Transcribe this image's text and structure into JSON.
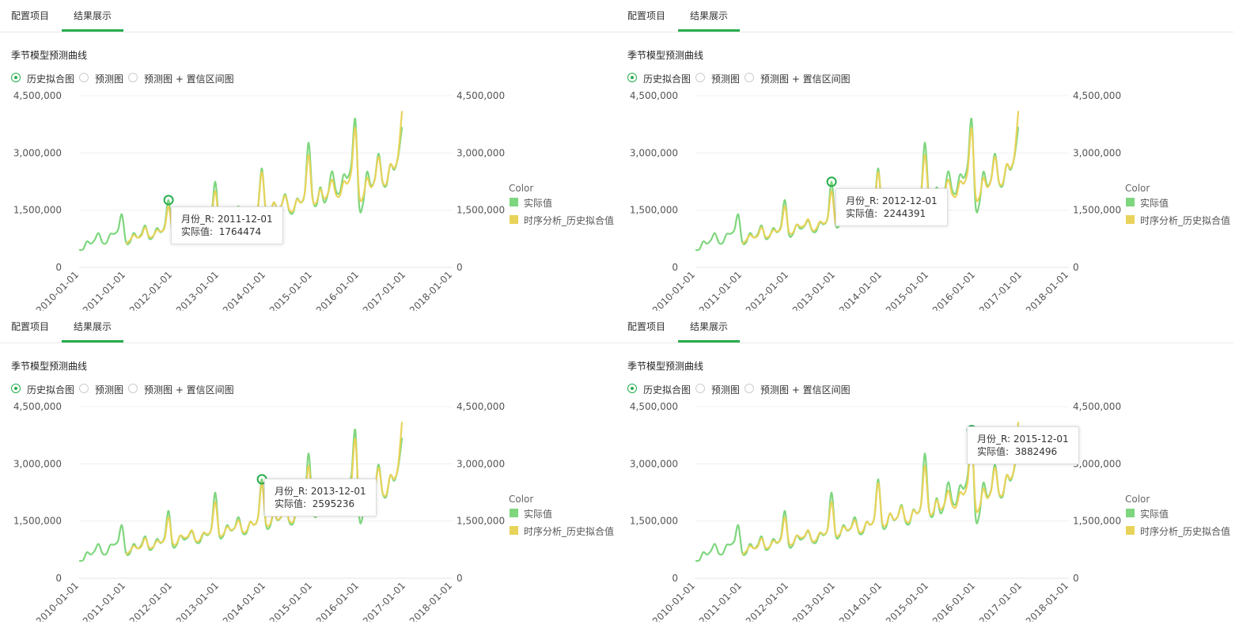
{
  "tabs": [
    "配置项目",
    "结果展示"
  ],
  "active_tab_index": 1,
  "panel_title": "季节模型预测曲线",
  "view_options": [
    "历史拟合图",
    "预测图",
    "预测图 + 置信区间图"
  ],
  "selected_view_index": 0,
  "colors": {
    "accent": "#27ad4e",
    "actual": "#7ed67e",
    "fitted": "#e8d35a"
  },
  "tooltip_labels": {
    "month": "月份_R:",
    "actual": "实际值:"
  },
  "tooltips": [
    {
      "date": "2011-12-01",
      "value": "1764474"
    },
    {
      "date": "2012-12-01",
      "value": "2244391"
    },
    {
      "date": "2013-12-01",
      "value": "2595236"
    },
    {
      "date": "2015-12-01",
      "value": "3882496"
    }
  ],
  "chart_data": {
    "type": "line",
    "title": "季节模型预测曲线",
    "x_tick_labels": [
      "2010-01-01",
      "2011-01-01",
      "2012-01-01",
      "2013-01-01",
      "2014-01-01",
      "2015-01-01",
      "2016-01-01",
      "2017-01-01",
      "2018-01-01"
    ],
    "xlim": [
      "2010-01-01",
      "2018-01-01"
    ],
    "y_tick_labels": [
      "0",
      "1,500,000",
      "3,000,000",
      "4,500,000"
    ],
    "ylim": [
      0,
      4500000
    ],
    "secondary_ylim": [
      0,
      4500000
    ],
    "legend_title": "Color",
    "legend_position": "right",
    "grid": true,
    "series": [
      {
        "name": "实际值",
        "color": "#7ed67e",
        "start": "2010-01-01",
        "interval": "month",
        "values": [
          460000,
          470000,
          680000,
          620000,
          720000,
          900000,
          650000,
          640000,
          870000,
          880000,
          980000,
          1390000,
          680000,
          650000,
          900000,
          780000,
          870000,
          1100000,
          760000,
          800000,
          1030000,
          920000,
          1100000,
          1764474,
          880000,
          860000,
          1120000,
          1010000,
          1080000,
          1230000,
          960000,
          940000,
          1180000,
          1130000,
          1320000,
          2244391,
          1150000,
          1100000,
          1390000,
          1250000,
          1330000,
          1600000,
          1200000,
          1180000,
          1480000,
          1400000,
          1620000,
          2595236,
          1420000,
          1340000,
          1700000,
          1520000,
          1620000,
          1920000,
          1480000,
          1430000,
          1800000,
          1700000,
          1960000,
          3270000,
          1850000,
          1620000,
          2100000,
          1700000,
          1950000,
          2520000,
          2020000,
          1960000,
          2430000,
          2350000,
          2720000,
          3882496,
          1620000,
          1680000,
          2500000,
          2150000,
          2320000,
          2980000,
          2240000,
          2150000,
          2700000,
          2560000,
          2900000,
          3680000
        ]
      },
      {
        "name": "时序分析_历史拟合值",
        "color": "#e8d35a",
        "start": "2011-01-01",
        "interval": "month",
        "values": [
          620000,
          700000,
          850000,
          780000,
          830000,
          1050000,
          800000,
          820000,
          980000,
          940000,
          1050000,
          1600000,
          950000,
          900000,
          1120000,
          1060000,
          1100000,
          1260000,
          980000,
          1000000,
          1200000,
          1150000,
          1300000,
          2000000,
          1180000,
          1140000,
          1350000,
          1270000,
          1320000,
          1520000,
          1230000,
          1230000,
          1480000,
          1400000,
          1600000,
          2500000,
          1480000,
          1400000,
          1700000,
          1540000,
          1620000,
          1880000,
          1520000,
          1480000,
          1780000,
          1700000,
          1950000,
          2950000,
          1800000,
          1700000,
          2050000,
          1800000,
          1950000,
          2300000,
          1920000,
          1870000,
          2250000,
          2200000,
          2550000,
          3650000,
          1900000,
          1850000,
          2350000,
          2100000,
          2300000,
          2900000,
          2250000,
          2200000,
          2700000,
          2600000,
          2950000,
          4100000
        ]
      }
    ]
  }
}
